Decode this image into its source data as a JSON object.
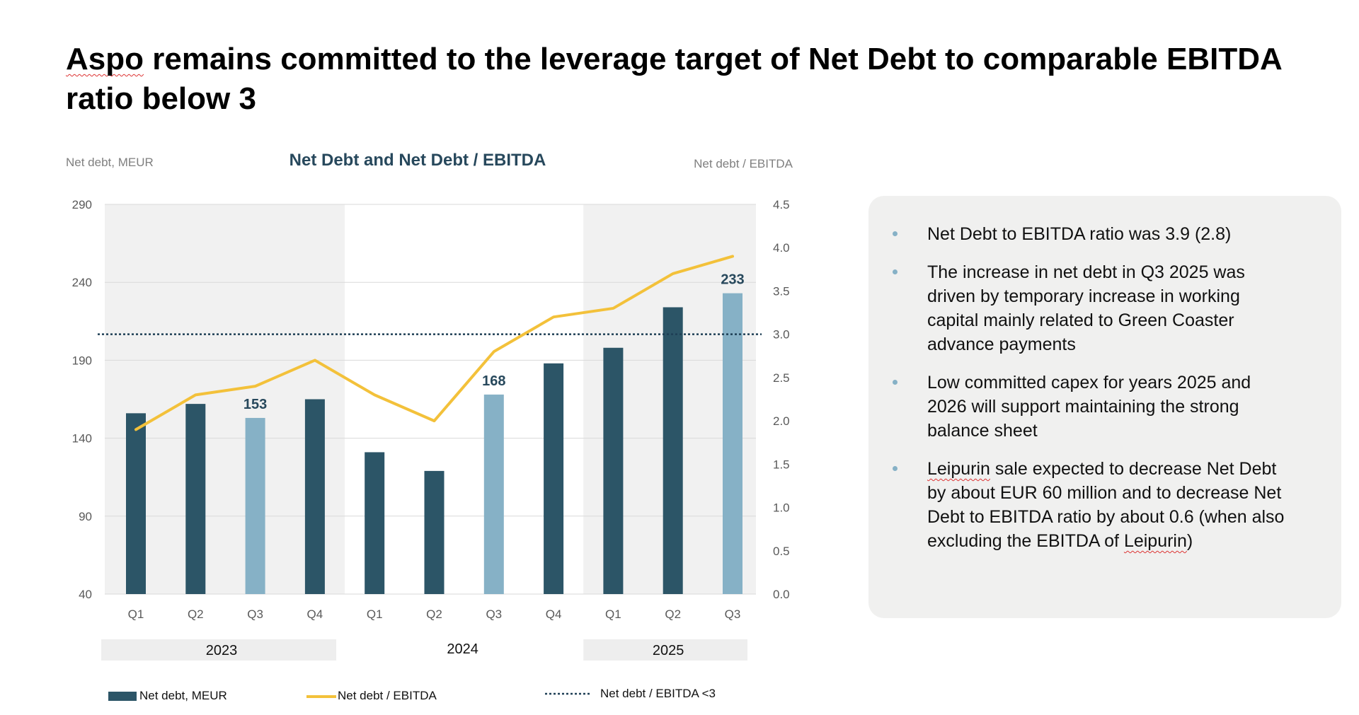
{
  "slide": {
    "title_first_word": "Aspo",
    "title_rest": " remains committed to the leverage target of Net Debt to comparable EBITDA ratio below 3"
  },
  "colors": {
    "bar_dark": "#2c5567",
    "bar_light": "#86b1c6",
    "line": "#f3c13a",
    "target_line": "#1e3f55",
    "title_blue": "#27485c",
    "band_grey": "#f1f1f1",
    "panel_bg": "#f0f0ef",
    "bullet_dot": "#86b1c6"
  },
  "chart_data": {
    "type": "bar+line",
    "title": "Net Debt and Net Debt / EBITDA",
    "left_axis_label": "Net debt, MEUR",
    "right_axis_label": "Net debt / EBITDA",
    "categories": [
      "Q1",
      "Q2",
      "Q3",
      "Q4",
      "Q1",
      "Q2",
      "Q3",
      "Q4",
      "Q1",
      "Q2",
      "Q3"
    ],
    "years": [
      {
        "label": "2023",
        "start": 0,
        "end": 3,
        "shaded": true
      },
      {
        "label": "2024",
        "start": 4,
        "end": 7,
        "shaded": false
      },
      {
        "label": "2025",
        "start": 8,
        "end": 10,
        "shaded": true
      }
    ],
    "left_axis": {
      "min": 40,
      "max": 290,
      "ticks": [
        40,
        90,
        140,
        190,
        240,
        290
      ]
    },
    "right_axis": {
      "min": 0.0,
      "max": 4.5,
      "ticks": [
        "0.0",
        "0.5",
        "1.0",
        "1.5",
        "2.0",
        "2.5",
        "3.0",
        "3.5",
        "4.0",
        "4.5"
      ]
    },
    "series": [
      {
        "name": "Net debt, MEUR",
        "type": "bar",
        "axis": "left",
        "values": [
          156,
          162,
          153,
          165,
          131,
          119,
          168,
          188,
          198,
          224,
          233
        ],
        "highlight": [
          false,
          false,
          true,
          false,
          false,
          false,
          true,
          false,
          false,
          false,
          true
        ],
        "data_labels": [
          null,
          null,
          "153",
          null,
          null,
          null,
          "168",
          null,
          null,
          null,
          "233"
        ]
      },
      {
        "name": "Net debt / EBITDA",
        "type": "line",
        "axis": "right",
        "values": [
          1.9,
          2.3,
          2.4,
          2.7,
          2.3,
          2.0,
          2.8,
          3.2,
          3.3,
          3.7,
          3.9
        ]
      }
    ],
    "reference_line": {
      "name": "Net debt / EBITDA <3",
      "axis": "right",
      "value": 3.0,
      "style": "dotted"
    },
    "legend": {
      "position": "bottom"
    }
  },
  "panel": {
    "bullets": [
      {
        "pre": "",
        "squiggle": "",
        "text": "Net Debt to EBITDA ratio was 3.9 (2.8)",
        "post_squiggle": ""
      },
      {
        "pre": "",
        "squiggle": "",
        "text": "The increase in net debt in Q3 2025 was driven by temporary increase in working capital mainly related to Green Coaster advance payments",
        "post_squiggle": ""
      },
      {
        "pre": "",
        "squiggle": "",
        "text": "Low committed capex for years 2025 and 2026 will support maintaining the strong balance sheet",
        "post_squiggle": ""
      },
      {
        "pre": "",
        "squiggle": "Leipurin",
        "text": " sale expected to decrease Net Debt by about EUR 60 million and to decrease Net Debt to EBITDA ratio by about 0.6 (when also excluding the EBITDA of ",
        "post_squiggle": "Leipurin",
        "tail": ")"
      }
    ]
  }
}
